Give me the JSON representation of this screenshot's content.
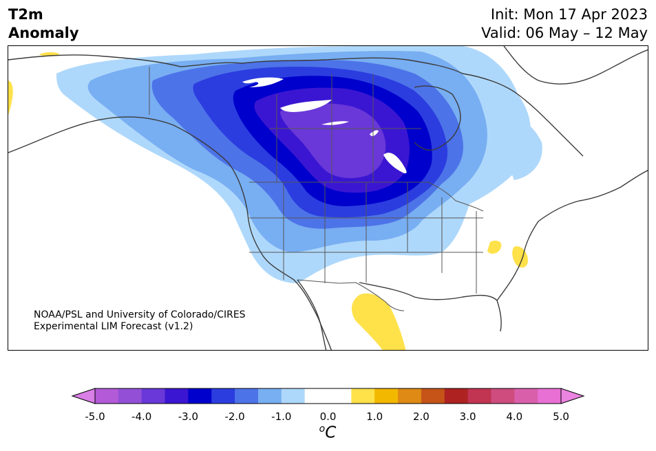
{
  "title": {
    "line1": "T2m",
    "line2": "Anomaly"
  },
  "init_text": "Init: Mon 17 Apr 2023",
  "valid_text": "Valid: 06 May – 12 May",
  "credit": {
    "line1": "NOAA/PSL and University of Colorado/CIRES",
    "line2": "Experimental LIM Forecast (v1.2)"
  },
  "colorbar": {
    "unit_main": "C",
    "unit_sup": "o",
    "extend": "both",
    "tick_labels": [
      "-5.0",
      "-4.0",
      "-3.0",
      "-2.0",
      "-1.0",
      "0.0",
      "1.0",
      "2.0",
      "3.0",
      "4.0",
      "5.0"
    ],
    "bins": [
      {
        "from": -5.0,
        "to": -4.5,
        "color": "#b25ad8"
      },
      {
        "from": -4.5,
        "to": -4.0,
        "color": "#9350d7"
      },
      {
        "from": -4.0,
        "to": -3.5,
        "color": "#6a38d8"
      },
      {
        "from": -3.5,
        "to": -3.0,
        "color": "#3b16d2"
      },
      {
        "from": -3.0,
        "to": -2.5,
        "color": "#0000cc"
      },
      {
        "from": -2.5,
        "to": -2.0,
        "color": "#2b3ddf"
      },
      {
        "from": -2.0,
        "to": -1.5,
        "color": "#4d73e8"
      },
      {
        "from": -1.5,
        "to": -1.0,
        "color": "#78aef2"
      },
      {
        "from": -1.0,
        "to": -0.5,
        "color": "#aed8fb"
      },
      {
        "from": -0.5,
        "to": 0.5,
        "color": "#ffffff"
      },
      {
        "from": 0.5,
        "to": 1.0,
        "color": "#ffe14a"
      },
      {
        "from": 1.0,
        "to": 1.5,
        "color": "#f2b800"
      },
      {
        "from": 1.5,
        "to": 2.0,
        "color": "#de8a14"
      },
      {
        "from": 2.0,
        "to": 2.5,
        "color": "#c65418"
      },
      {
        "from": 2.5,
        "to": 3.0,
        "color": "#ae2222"
      },
      {
        "from": 3.0,
        "to": 3.5,
        "color": "#c13452"
      },
      {
        "from": 3.5,
        "to": 4.0,
        "color": "#ce4c7e"
      },
      {
        "from": 4.0,
        "to": 4.5,
        "color": "#da5fab"
      },
      {
        "from": 4.5,
        "to": 5.0,
        "color": "#e870d4"
      }
    ],
    "under_color": "#d97fe6",
    "over_color": "#eb83e0"
  },
  "map_colors": {
    "land_outline": "#3a3a3a",
    "border_line": "#555555",
    "water": "#ffffff"
  }
}
